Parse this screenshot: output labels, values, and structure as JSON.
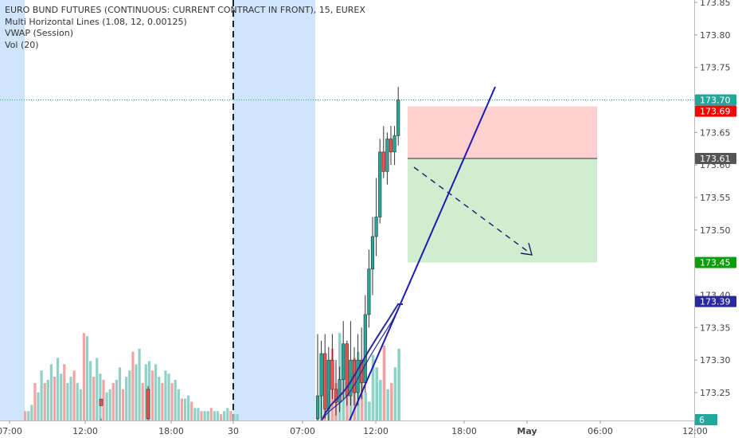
{
  "legend": {
    "symbol_line": "EURO BUND FUTURES (CONTINUOUS: CURRENT CONTRACT IN FRONT), 15, EUREX",
    "indicator_1": "Multi Horizontal Lines (1.08, 12, 0.00125)",
    "indicator_2": "VWAP (Session)",
    "indicator_3": "Vol (20)"
  },
  "chart_data": {
    "type": "candlestick",
    "symbol": "EURO BUND FUTURES (CONTINUOUS: CURRENT CONTRACT IN FRONT)",
    "interval": "15",
    "exchange": "EUREX",
    "y_axis": {
      "ticks": [
        "173.85",
        "173.80",
        "173.75",
        "173.70",
        "173.65",
        "173.60",
        "173.55",
        "173.50",
        "173.45",
        "173.40",
        "173.35",
        "173.30",
        "173.25"
      ],
      "range": [
        173.205,
        173.855
      ]
    },
    "x_axis": {
      "ticks": [
        "07:00",
        "12:00",
        "18:00",
        "30",
        "07:00",
        "12:00",
        "18:00",
        "May",
        "06:00",
        "12:00"
      ],
      "bold_ticks": [
        "May"
      ]
    },
    "price_labels": [
      {
        "value": "173.70",
        "role": "last-price",
        "color": "#26a69a"
      },
      {
        "value": "173.69",
        "role": "stop-loss",
        "color": "#ff0000"
      },
      {
        "value": "173.61",
        "role": "entry",
        "color": "#555555"
      },
      {
        "value": "173.45",
        "role": "take-profit",
        "color": "#0a9f0a"
      },
      {
        "value": "173.39",
        "role": "vwap",
        "color": "#2a2a9c"
      }
    ],
    "volume_label": "6",
    "session_shading_color": "#cfe5fb",
    "candles_day2": [
      {
        "o": 173.21,
        "h": 173.34,
        "l": 173.205,
        "c": 173.245
      },
      {
        "o": 173.245,
        "h": 173.33,
        "l": 173.21,
        "c": 173.31
      },
      {
        "o": 173.31,
        "h": 173.34,
        "l": 173.21,
        "c": 173.225
      },
      {
        "o": 173.225,
        "h": 173.32,
        "l": 173.205,
        "c": 173.3
      },
      {
        "o": 173.3,
        "h": 173.34,
        "l": 173.24,
        "c": 173.255
      },
      {
        "o": 173.255,
        "h": 173.3,
        "l": 173.215,
        "c": 173.235
      },
      {
        "o": 173.235,
        "h": 173.29,
        "l": 173.22,
        "c": 173.27
      },
      {
        "o": 173.27,
        "h": 173.36,
        "l": 173.24,
        "c": 173.325
      },
      {
        "o": 173.325,
        "h": 173.33,
        "l": 173.23,
        "c": 173.245
      },
      {
        "o": 173.245,
        "h": 173.36,
        "l": 173.23,
        "c": 173.3
      },
      {
        "o": 173.3,
        "h": 173.32,
        "l": 173.23,
        "c": 173.25
      },
      {
        "o": 173.25,
        "h": 173.34,
        "l": 173.23,
        "c": 173.3
      },
      {
        "o": 173.3,
        "h": 173.35,
        "l": 173.24,
        "c": 173.265
      },
      {
        "o": 173.265,
        "h": 173.4,
        "l": 173.25,
        "c": 173.37
      },
      {
        "o": 173.37,
        "h": 173.47,
        "l": 173.35,
        "c": 173.44
      },
      {
        "o": 173.44,
        "h": 173.52,
        "l": 173.4,
        "c": 173.49
      },
      {
        "o": 173.49,
        "h": 173.58,
        "l": 173.46,
        "c": 173.52
      },
      {
        "o": 173.52,
        "h": 173.64,
        "l": 173.51,
        "c": 173.62
      },
      {
        "o": 173.62,
        "h": 173.66,
        "l": 173.58,
        "c": 173.59
      },
      {
        "o": 173.59,
        "h": 173.65,
        "l": 173.57,
        "c": 173.64
      },
      {
        "o": 173.64,
        "h": 173.66,
        "l": 173.6,
        "c": 173.62
      },
      {
        "o": 173.62,
        "h": 173.66,
        "l": 173.6,
        "c": 173.645
      },
      {
        "o": 173.645,
        "h": 173.72,
        "l": 173.63,
        "c": 173.7
      }
    ],
    "volume_day1": [
      3,
      3,
      5,
      12,
      9,
      16,
      12,
      13,
      18,
      14,
      20,
      15,
      18,
      12,
      14,
      16,
      12,
      10,
      28,
      27,
      19,
      14,
      20,
      15,
      13,
      9,
      10,
      12,
      13,
      17,
      10,
      14,
      16,
      22,
      18,
      23,
      12,
      18,
      19,
      16,
      18,
      14,
      12,
      16,
      15,
      12,
      13,
      10,
      7,
      7,
      8,
      6,
      4,
      4,
      3,
      3,
      3,
      4,
      3,
      3,
      2,
      3,
      4,
      3,
      2,
      2
    ],
    "volume_day2": [
      2,
      8,
      17,
      6,
      23,
      12,
      28,
      16,
      12,
      15,
      20,
      22,
      18,
      9,
      6,
      21,
      17,
      13,
      24,
      10,
      12,
      17,
      23
    ]
  }
}
